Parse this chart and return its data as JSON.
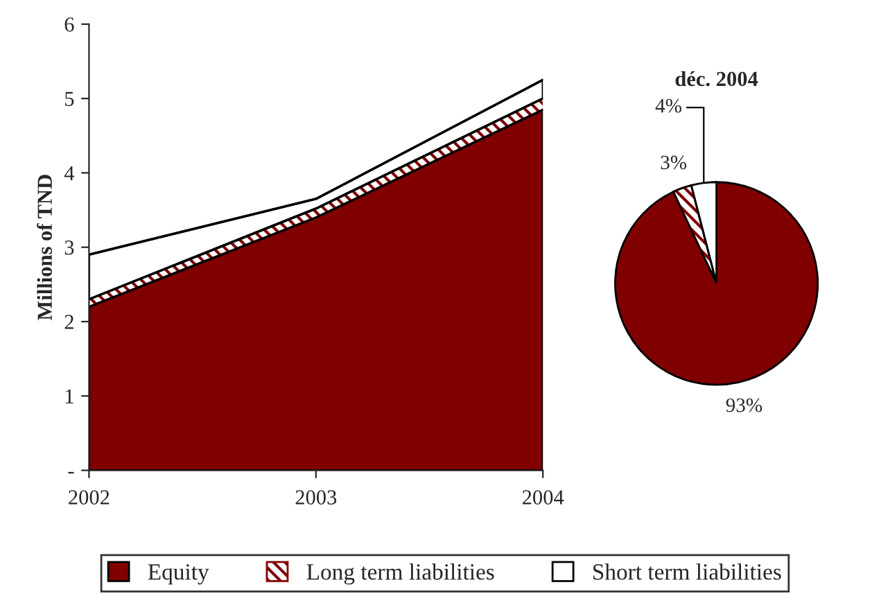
{
  "chart_data": [
    {
      "type": "area",
      "stacked": true,
      "ylabel": "Millions of TND",
      "x": [
        2002,
        2003,
        2004
      ],
      "series": [
        {
          "name": "Equity",
          "color": "#800000",
          "values": [
            2.2,
            3.4,
            4.85
          ]
        },
        {
          "name": "Long term liabilities",
          "color": "#800000",
          "values": [
            0.1,
            0.12,
            0.15
          ]
        },
        {
          "name": "Short term liabilities",
          "color": "#ffffff",
          "values": [
            0.6,
            0.13,
            0.25
          ]
        }
      ],
      "xlim": [
        2002,
        2004
      ],
      "xticks": [
        2002,
        2003,
        2004
      ],
      "ylim": [
        0,
        6
      ],
      "yticks": [
        {
          "value": 0,
          "label": "-"
        },
        1,
        2,
        3,
        4,
        5,
        6
      ],
      "grid": false,
      "legend": "bottom"
    },
    {
      "type": "pie",
      "title": "déc. 2004",
      "categories": [
        null,
        null,
        null
      ],
      "values": [
        93,
        3,
        4
      ],
      "value_labels": [
        "93%",
        "3%",
        "4%"
      ],
      "colors": [
        "#800000",
        "#800000",
        "#ffffff"
      ]
    }
  ]
}
